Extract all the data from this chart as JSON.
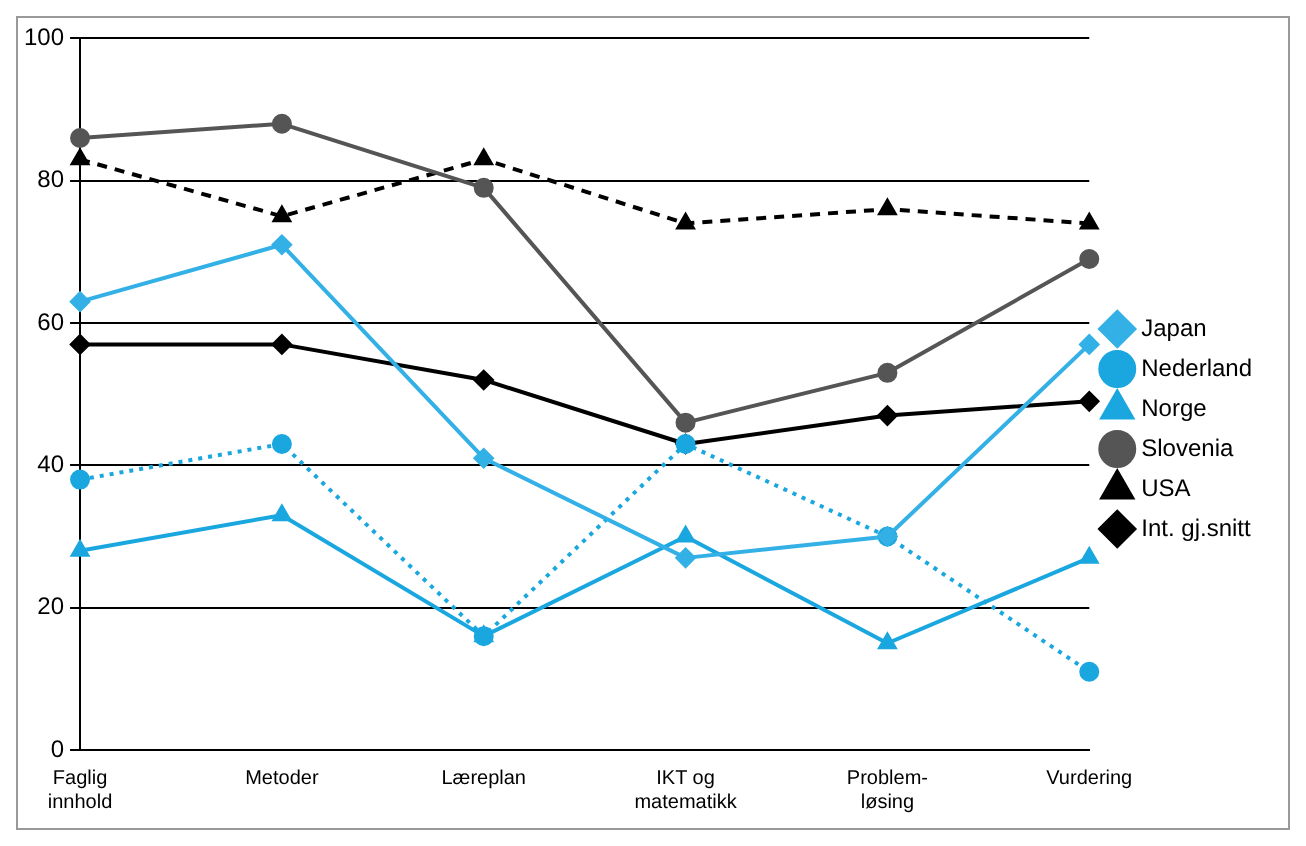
{
  "chart_data": {
    "type": "line",
    "categories": [
      "Faglig\ninnhold",
      "Metoder",
      "Læreplan",
      "IKT og\nmatematikk",
      "Problem-\nløsing",
      "Vurdering"
    ],
    "series": [
      {
        "name": "Japan",
        "color": "#33b0e6",
        "marker": "diamond",
        "line_style": "solid",
        "values": [
          63,
          71,
          41,
          27,
          30,
          57
        ]
      },
      {
        "name": "Nederland",
        "color": "#1aa7e0",
        "marker": "circle",
        "line_style": "dotted",
        "values": [
          38,
          43,
          16,
          43,
          30,
          11
        ]
      },
      {
        "name": "Norge",
        "color": "#1aa7e0",
        "marker": "triangle",
        "line_style": "solid",
        "values": [
          28,
          33,
          16,
          30,
          15,
          27
        ]
      },
      {
        "name": "Slovenia",
        "color": "#555555",
        "marker": "circle",
        "line_style": "solid",
        "values": [
          86,
          88,
          79,
          46,
          53,
          69
        ]
      },
      {
        "name": "USA",
        "color": "#000000",
        "marker": "triangle",
        "line_style": "dashed",
        "values": [
          83,
          75,
          83,
          74,
          76,
          74
        ]
      },
      {
        "name": "Int. gj.snitt",
        "color": "#000000",
        "marker": "diamond",
        "line_style": "solid",
        "values": [
          57,
          57,
          52,
          43,
          47,
          49
        ]
      }
    ],
    "ylim": [
      0,
      100
    ],
    "yticks": [
      0,
      20,
      40,
      60,
      80,
      100
    ],
    "grid": "y",
    "legend": "right"
  }
}
